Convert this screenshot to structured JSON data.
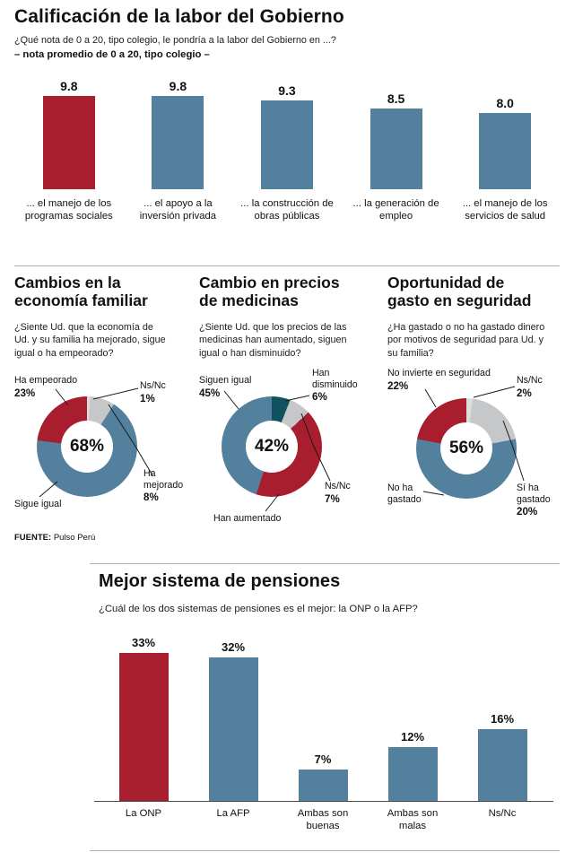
{
  "source": {
    "label": "FUENTE:",
    "value": "Pulso Perú"
  },
  "chart_data": [
    {
      "id": "calificacion-gobierno",
      "type": "bar",
      "title": "Calificación de la labor del Gobierno",
      "question": "¿Qué nota de 0 a 20, tipo colegio, le pondría a la labor del Gobierno en ...?",
      "note": "– nota promedio de 0 a 20, tipo colegio –",
      "ylim": [
        0,
        20
      ],
      "categories": [
        "... el manejo de los programas sociales",
        "... el apoyo a la inversión privada",
        "... la construcción de obras públicas",
        "... la generación de empleo",
        "... el manejo de los servicios de salud"
      ],
      "values": [
        9.8,
        9.8,
        9.3,
        8.5,
        8.0
      ],
      "value_labels": [
        "9.8",
        "9.8",
        "9.3",
        "8.5",
        "8.0"
      ],
      "bar_colors": [
        "#a81e2e",
        "#53809c",
        "#53809c",
        "#53809c",
        "#53809c"
      ]
    },
    {
      "id": "economia-familiar",
      "type": "donut",
      "title": "Cambios en la economía familiar",
      "question": "¿Siente Ud. que la economía de Ud. y su familia ha mejorado, sigue igual o ha empeorado?",
      "center_label": "68%",
      "segments": [
        {
          "label": "Ns/Nc",
          "value": 1,
          "value_label": "1%",
          "color": "#dcdddd"
        },
        {
          "label": "Ha mejorado",
          "value": 8,
          "value_label": "8%",
          "color": "#c6c7c9"
        },
        {
          "label": "Sigue igual",
          "value": 68,
          "value_label": "",
          "color": "#53809c"
        },
        {
          "label": "Ha empeorado",
          "value": 23,
          "value_label": "23%",
          "color": "#a81e2e"
        }
      ]
    },
    {
      "id": "precios-medicinas",
      "type": "donut",
      "title": "Cambio en precios de medicinas",
      "question": "¿Siente Ud. que los precios de las medicinas han aumentado, siguen igual o han disminuido?",
      "center_label": "42%",
      "segments": [
        {
          "label": "Han disminuido",
          "value": 6,
          "value_label": "6%",
          "color": "#11525f"
        },
        {
          "label": "Ns/Nc",
          "value": 7,
          "value_label": "7%",
          "color": "#c6c7c9"
        },
        {
          "label": "Han aumentado",
          "value": 42,
          "value_label": "",
          "color": "#a81e2e"
        },
        {
          "label": "Siguen igual",
          "value": 45,
          "value_label": "45%",
          "color": "#53809c"
        }
      ]
    },
    {
      "id": "gasto-seguridad",
      "type": "donut",
      "title": "Oportunidad de gasto en seguridad",
      "question": "¿Ha gastado o no ha gastado dinero por motivos de seguridad para Ud. y su familia?",
      "center_label": "56%",
      "segments": [
        {
          "label": "Ns/Nc",
          "value": 2,
          "value_label": "2%",
          "color": "#dcdddd"
        },
        {
          "label": "Sí ha gastado",
          "value": 20,
          "value_label": "20%",
          "color": "#c6c7c9"
        },
        {
          "label": "No ha gastado",
          "value": 56,
          "value_label": "",
          "color": "#53809c"
        },
        {
          "label": "No invierte en seguridad",
          "value": 22,
          "value_label": "22%",
          "color": "#a81e2e"
        }
      ]
    },
    {
      "id": "sistema-pensiones",
      "type": "bar",
      "title": "Mejor sistema de pensiones",
      "question": "¿Cuál de los dos sistemas de pensiones es el mejor: la ONP o la AFP?",
      "ylim": [
        0,
        35
      ],
      "categories": [
        "La ONP",
        "La AFP",
        "Ambas son buenas",
        "Ambas son malas",
        "Ns/Nc"
      ],
      "values": [
        33,
        32,
        7,
        12,
        16
      ],
      "value_labels": [
        "33%",
        "32%",
        "7%",
        "12%",
        "16%"
      ],
      "bar_colors": [
        "#a81e2e",
        "#53809c",
        "#53809c",
        "#53809c",
        "#53809c"
      ]
    }
  ]
}
